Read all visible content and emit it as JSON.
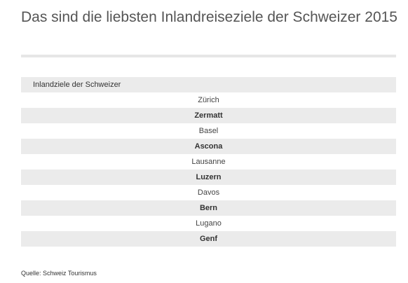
{
  "title": "Das sind die liebsten Inlandreiseziele der Schweizer 2015",
  "table": {
    "header": "Inlandziele der Schweizer",
    "rows": [
      "Zürich",
      "Zermatt",
      "Basel",
      "Ascona",
      "Lausanne",
      "Luzern",
      "Davos",
      "Bern",
      "Lugano",
      "Genf"
    ]
  },
  "source": "Quelle: Schweiz Tourismus"
}
